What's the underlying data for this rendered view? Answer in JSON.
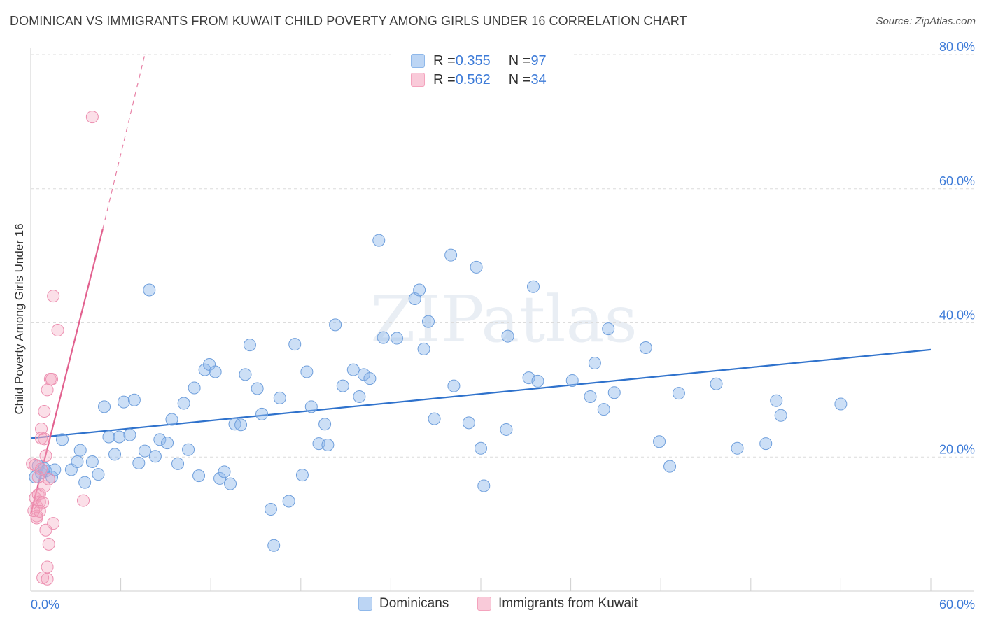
{
  "title": "DOMINICAN VS IMMIGRANTS FROM KUWAIT CHILD POVERTY AMONG GIRLS UNDER 16 CORRELATION CHART",
  "source": "Source: ZipAtlas.com",
  "watermark": "ZIPatlas",
  "legend": {
    "row1": {
      "r_label": "R = ",
      "r_value": "0.355",
      "n_label": "N = ",
      "n_value": "97"
    },
    "row2": {
      "r_label": "R = ",
      "r_value": "0.562",
      "n_label": "N = ",
      "n_value": "34"
    }
  },
  "bottom_legend": {
    "series1": "Dominicans",
    "series2": "Immigrants from Kuwait"
  },
  "chart_data": {
    "type": "scatter",
    "xlabel": "",
    "ylabel": "Child Poverty Among Girls Under 16",
    "xlim": [
      0,
      60
    ],
    "ylim": [
      0,
      80
    ],
    "x_tick_labels": [
      "0.0%",
      "60.0%"
    ],
    "y_tick_labels": [
      "20.0%",
      "40.0%",
      "60.0%",
      "80.0%"
    ],
    "y_ticks": [
      20,
      40,
      60,
      80
    ],
    "grid": true,
    "colors": {
      "dominicans": "#8fb8ea",
      "dominicans_line": "#2f72cc",
      "kuwait": "#f4a3bd",
      "kuwait_line": "#e2618f",
      "tick_text": "#3d7bd8"
    },
    "series": [
      {
        "name": "Dominicans",
        "r": 0.355,
        "n": 97,
        "trend": {
          "x0": 0,
          "y0": 22.8,
          "x1": 60,
          "y1": 36.0
        },
        "points": [
          [
            0.5,
            18.7
          ],
          [
            0.7,
            17.6
          ],
          [
            1.0,
            17.9
          ],
          [
            1.4,
            17.0
          ],
          [
            1.6,
            18.1
          ],
          [
            2.1,
            22.6
          ],
          [
            2.7,
            18.1
          ],
          [
            3.1,
            19.3
          ],
          [
            3.3,
            21.0
          ],
          [
            3.6,
            16.2
          ],
          [
            4.1,
            19.3
          ],
          [
            4.5,
            17.4
          ],
          [
            4.9,
            27.5
          ],
          [
            5.2,
            23.0
          ],
          [
            5.6,
            20.4
          ],
          [
            5.9,
            23.0
          ],
          [
            6.2,
            28.2
          ],
          [
            6.6,
            23.3
          ],
          [
            6.9,
            28.5
          ],
          [
            7.2,
            19.1
          ],
          [
            7.6,
            20.9
          ],
          [
            7.9,
            44.9
          ],
          [
            8.3,
            20.1
          ],
          [
            8.6,
            22.6
          ],
          [
            9.1,
            22.1
          ],
          [
            9.4,
            25.6
          ],
          [
            9.8,
            19.0
          ],
          [
            10.2,
            28.0
          ],
          [
            10.5,
            21.1
          ],
          [
            10.9,
            30.3
          ],
          [
            11.2,
            17.2
          ],
          [
            11.6,
            33.0
          ],
          [
            11.9,
            33.8
          ],
          [
            12.3,
            32.7
          ],
          [
            12.6,
            16.8
          ],
          [
            12.9,
            17.8
          ],
          [
            13.3,
            16.0
          ],
          [
            13.6,
            24.9
          ],
          [
            14.0,
            24.8
          ],
          [
            14.3,
            32.3
          ],
          [
            14.6,
            36.7
          ],
          [
            15.1,
            30.2
          ],
          [
            15.4,
            26.4
          ],
          [
            16.0,
            12.2
          ],
          [
            16.2,
            6.8
          ],
          [
            16.6,
            28.8
          ],
          [
            17.2,
            13.4
          ],
          [
            17.6,
            36.8
          ],
          [
            18.1,
            17.3
          ],
          [
            18.4,
            32.7
          ],
          [
            18.7,
            27.5
          ],
          [
            19.2,
            22.0
          ],
          [
            19.6,
            24.9
          ],
          [
            19.8,
            21.8
          ],
          [
            20.3,
            39.7
          ],
          [
            20.8,
            30.6
          ],
          [
            21.5,
            33.0
          ],
          [
            21.9,
            29.0
          ],
          [
            22.2,
            32.3
          ],
          [
            22.6,
            31.7
          ],
          [
            23.2,
            52.3
          ],
          [
            23.5,
            37.8
          ],
          [
            24.4,
            37.7
          ],
          [
            25.6,
            43.6
          ],
          [
            25.9,
            44.9
          ],
          [
            26.2,
            36.1
          ],
          [
            26.5,
            40.2
          ],
          [
            26.9,
            25.7
          ],
          [
            28.0,
            50.1
          ],
          [
            28.2,
            30.6
          ],
          [
            29.2,
            25.1
          ],
          [
            29.7,
            48.3
          ],
          [
            30.0,
            21.3
          ],
          [
            30.2,
            15.7
          ],
          [
            31.7,
            24.1
          ],
          [
            31.8,
            38.0
          ],
          [
            33.2,
            31.8
          ],
          [
            33.5,
            45.4
          ],
          [
            33.8,
            31.3
          ],
          [
            36.1,
            31.4
          ],
          [
            37.3,
            29.0
          ],
          [
            37.6,
            34.0
          ],
          [
            38.2,
            27.1
          ],
          [
            38.5,
            39.1
          ],
          [
            38.9,
            29.6
          ],
          [
            41.0,
            36.3
          ],
          [
            41.9,
            22.3
          ],
          [
            42.6,
            18.6
          ],
          [
            43.2,
            29.5
          ],
          [
            45.7,
            30.9
          ],
          [
            47.1,
            21.3
          ],
          [
            49.0,
            22.0
          ],
          [
            49.7,
            28.4
          ],
          [
            50.0,
            26.2
          ],
          [
            54.0,
            27.9
          ],
          [
            0.3,
            17.0
          ],
          [
            0.9,
            18.3
          ]
        ]
      },
      {
        "name": "Immigrants from Kuwait",
        "r": 0.562,
        "n": 34,
        "trend": {
          "x0": 0,
          "y0": 11.5,
          "x1": 4.8,
          "y1": 54.0,
          "dash_x1": 7.6,
          "dash_y1": 80.0
        },
        "points": [
          [
            0.1,
            19.0
          ],
          [
            0.3,
            18.8
          ],
          [
            0.3,
            13.9
          ],
          [
            0.4,
            12.6
          ],
          [
            0.4,
            11.2
          ],
          [
            0.4,
            10.9
          ],
          [
            0.5,
            14.4
          ],
          [
            0.6,
            14.5
          ],
          [
            0.6,
            13.3
          ],
          [
            0.7,
            24.2
          ],
          [
            0.7,
            22.8
          ],
          [
            0.7,
            18.2
          ],
          [
            0.8,
            13.2
          ],
          [
            0.8,
            2.0
          ],
          [
            0.9,
            22.7
          ],
          [
            0.9,
            26.8
          ],
          [
            0.9,
            15.6
          ],
          [
            1.0,
            20.2
          ],
          [
            1.0,
            9.1
          ],
          [
            1.1,
            3.6
          ],
          [
            1.1,
            1.8
          ],
          [
            1.1,
            30.0
          ],
          [
            1.2,
            16.7
          ],
          [
            1.2,
            7.0
          ],
          [
            1.3,
            31.6
          ],
          [
            1.4,
            31.6
          ],
          [
            1.5,
            10.1
          ],
          [
            1.5,
            44.0
          ],
          [
            1.8,
            38.9
          ],
          [
            3.5,
            13.5
          ],
          [
            4.1,
            70.7
          ],
          [
            0.2,
            12.0
          ],
          [
            0.5,
            17.0
          ],
          [
            0.6,
            11.9
          ]
        ]
      }
    ]
  }
}
